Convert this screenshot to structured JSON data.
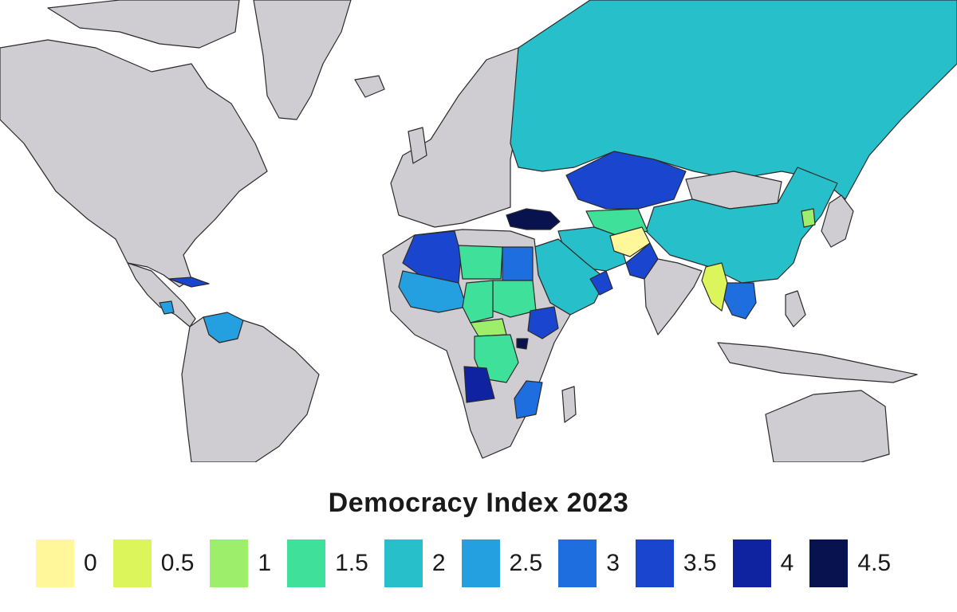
{
  "legend": {
    "title": "Democracy Index 2023",
    "items": [
      {
        "label": "0",
        "value": 0,
        "color": "#fff799"
      },
      {
        "label": "0.5",
        "value": 0.5,
        "color": "#dcf55a"
      },
      {
        "label": "1",
        "value": 1,
        "color": "#9cee6b"
      },
      {
        "label": "1.5",
        "value": 1.5,
        "color": "#3fe19a"
      },
      {
        "label": "2",
        "value": 2,
        "color": "#27bfc9"
      },
      {
        "label": "2.5",
        "value": 2.5,
        "color": "#249fe0"
      },
      {
        "label": "3",
        "value": 3,
        "color": "#1f6ee0"
      },
      {
        "label": "3.5",
        "value": 3.5,
        "color": "#1a46cf"
      },
      {
        "label": "4",
        "value": 4,
        "color": "#0f23a0"
      },
      {
        "label": "4.5",
        "value": 4.5,
        "color": "#07124f"
      }
    ]
  },
  "colors": {
    "land_default": "#cfcdd2",
    "ocean": "#ffffff",
    "border": "#2b2b2b"
  }
}
